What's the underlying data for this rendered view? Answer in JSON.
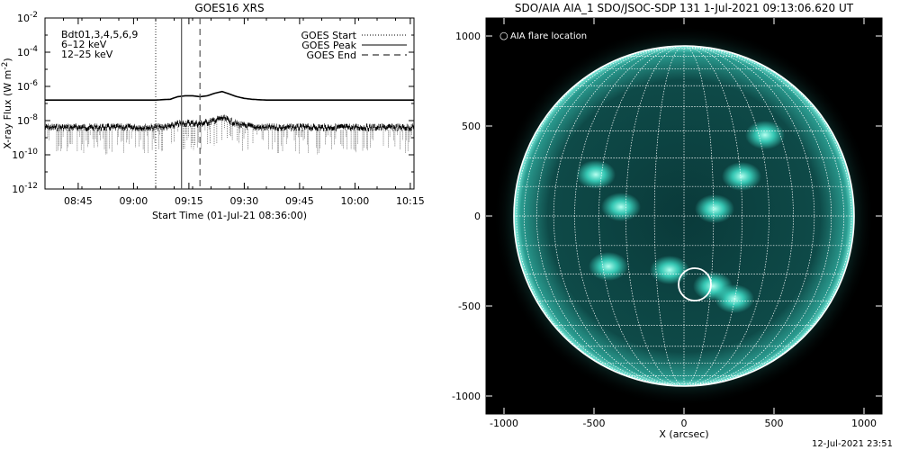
{
  "chart_data": [
    {
      "type": "line",
      "title": "GOES16 XRS",
      "xlabel": "Start Time (01-Jul-21 08:36:00)",
      "ylabel": "X-ray Flux (W m",
      "ylabel_sup": "-2",
      "ylabel_close": ")",
      "log_y": true,
      "ylim_exp": [
        -12,
        -2
      ],
      "y_ticks": [
        {
          "base": "10",
          "exp": "-2",
          "e": -2
        },
        {
          "base": "10",
          "exp": "-4",
          "e": -4
        },
        {
          "base": "10",
          "exp": "-6",
          "e": -6
        },
        {
          "base": "10",
          "exp": "-8",
          "e": -8
        },
        {
          "base": "10",
          "exp": "-10",
          "e": -10
        },
        {
          "base": "10",
          "exp": "-12",
          "e": -12
        }
      ],
      "xlim_min": [
        0,
        100
      ],
      "x_ticks": [
        {
          "label": "08:45",
          "t": 9
        },
        {
          "label": "09:00",
          "t": 24
        },
        {
          "label": "09:15",
          "t": 39
        },
        {
          "label": "09:30",
          "t": 54
        },
        {
          "label": "09:45",
          "t": 69
        },
        {
          "label": "10:00",
          "t": 84
        },
        {
          "label": "10:15",
          "t": 99
        }
      ],
      "channels_label": "Bdt01,3,4,5,6,9",
      "band_labels": [
        {
          "text": "6–12 keV",
          "color": "#e020e0"
        },
        {
          "text": "12–25 keV",
          "color": "#10d010"
        }
      ],
      "legend": [
        {
          "label": "GOES Start",
          "style": "dotted"
        },
        {
          "label": "GOES Peak",
          "style": "solid"
        },
        {
          "label": "GOES End",
          "style": "dashed"
        }
      ],
      "markers": [
        {
          "name": "GOES Start",
          "t": 30
        },
        {
          "name": "GOES Peak",
          "t": 37
        },
        {
          "name": "GOES End",
          "t": 42
        }
      ],
      "series": [
        {
          "style": "solid",
          "x": [
            0,
            10,
            20,
            30,
            34,
            36,
            38,
            40,
            42,
            44,
            46,
            48,
            50,
            52,
            54,
            56,
            58,
            60,
            70,
            80,
            90,
            100
          ],
          "log_values": [
            -6.8,
            -6.8,
            -6.8,
            -6.8,
            -6.75,
            -6.6,
            -6.55,
            -6.55,
            -6.6,
            -6.55,
            -6.4,
            -6.3,
            -6.45,
            -6.6,
            -6.7,
            -6.75,
            -6.78,
            -6.8,
            -6.8,
            -6.8,
            -6.8,
            -6.8
          ]
        },
        {
          "style": "noisy",
          "x": [
            0,
            10,
            20,
            30,
            34,
            36,
            38,
            40,
            42,
            44,
            46,
            48,
            50,
            52,
            54,
            56,
            58,
            60,
            70,
            80,
            90,
            100
          ],
          "log_values": [
            -8.4,
            -8.4,
            -8.4,
            -8.4,
            -8.35,
            -8.2,
            -8.15,
            -8.15,
            -8.2,
            -8.1,
            -8.0,
            -7.85,
            -8.0,
            -8.2,
            -8.3,
            -8.35,
            -8.4,
            -8.4,
            -8.4,
            -8.4,
            -8.4,
            -8.4
          ]
        }
      ]
    },
    {
      "type": "image",
      "title": "SDO/AIA AIA_1 SDO/JSOC-SDP 131   1-Jul-2021 09:13:06.620 UT",
      "xlabel": "X (arcsec)",
      "xlim": [
        -1100,
        1100
      ],
      "ylim": [
        -1100,
        1100
      ],
      "x_ticks": [
        -1000,
        -500,
        0,
        500,
        1000
      ],
      "y_ticks": [
        1000,
        500,
        0,
        -500,
        -1000
      ],
      "legend": {
        "symbol": "○",
        "label": "AIA flare location"
      },
      "flare_location": {
        "x": 60,
        "y": -380
      },
      "disk_radius": 945,
      "active_regions": [
        {
          "x": -490,
          "y": 230
        },
        {
          "x": 450,
          "y": 450
        },
        {
          "x": 320,
          "y": 220
        },
        {
          "x": 170,
          "y": 40
        },
        {
          "x": -350,
          "y": 50
        },
        {
          "x": -420,
          "y": -280
        },
        {
          "x": -80,
          "y": -300
        },
        {
          "x": 160,
          "y": -390
        },
        {
          "x": 280,
          "y": -460
        }
      ],
      "colors": {
        "background": "#000000",
        "disk": "#0b3b3b",
        "bright": "#40e8d0",
        "grid": "#ffffff"
      }
    }
  ],
  "footer_timestamp": "12-Jul-2021 23:51"
}
